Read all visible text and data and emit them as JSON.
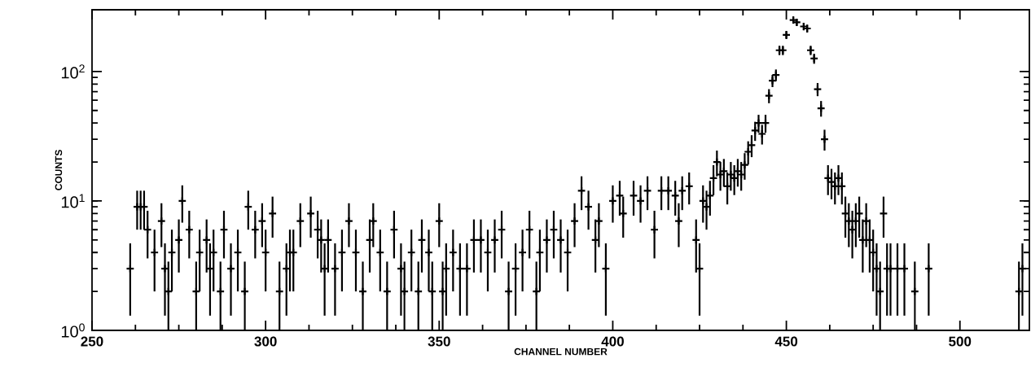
{
  "chart_data": {
    "type": "scatter",
    "xlabel": "CHANNEL NUMBER",
    "ylabel": "COUNTS",
    "log": "y",
    "marker": "cross",
    "xlim": [
      250,
      520
    ],
    "ylim": [
      1,
      300
    ],
    "xticks": [
      250,
      300,
      350,
      400,
      450,
      500
    ],
    "yticks": [
      {
        "value": 1,
        "label": "10$^{0}$"
      },
      {
        "value": 10,
        "label": "10$^{1}$"
      },
      {
        "value": 100,
        "label": "10$^{2}$"
      }
    ],
    "series": [
      {
        "color": "#000000",
        "x": [
          261,
          263,
          264,
          265,
          266,
          268,
          270,
          271,
          272,
          273,
          275,
          276,
          278,
          280,
          281,
          283,
          284,
          285,
          287,
          288,
          290,
          292,
          294,
          295,
          297,
          299,
          300,
          302,
          304,
          306,
          307,
          308,
          310,
          313,
          315,
          316,
          317,
          318,
          320,
          322,
          324,
          326,
          328,
          330,
          331,
          333,
          335,
          337,
          339,
          340,
          342,
          344,
          345,
          347,
          348,
          350,
          351,
          352,
          354,
          356,
          358,
          360,
          362,
          364,
          366,
          368,
          370,
          372,
          374,
          376,
          378,
          379,
          381,
          383,
          385,
          387,
          389,
          391,
          393,
          395,
          396,
          398,
          400,
          402,
          403,
          406,
          408,
          410,
          412,
          414,
          416,
          418,
          419,
          420,
          422,
          424,
          425,
          426,
          427,
          428,
          429,
          430,
          431,
          432,
          433,
          434,
          435,
          436,
          437,
          438,
          439,
          440,
          441,
          442,
          443,
          444,
          445,
          446,
          447,
          448,
          449,
          450,
          452,
          453,
          455,
          456,
          457,
          458,
          459,
          460,
          461,
          462,
          463,
          464,
          465,
          466,
          467,
          468,
          469,
          470,
          471,
          472,
          473,
          474,
          475,
          476,
          477,
          478,
          479,
          480,
          482,
          484,
          487,
          491,
          517,
          518
        ],
        "values": [
          3,
          9,
          9,
          9,
          6,
          4,
          7,
          3,
          2,
          4,
          5,
          10,
          6,
          2,
          4,
          5,
          3,
          4,
          2,
          6,
          3,
          4,
          2,
          9,
          6,
          7,
          4,
          8,
          2,
          3,
          4,
          4,
          7,
          8,
          6,
          5,
          3,
          5,
          3,
          4,
          7,
          4,
          2,
          5,
          7,
          4,
          2,
          6,
          3,
          2,
          4,
          2,
          5,
          4,
          2,
          7,
          2,
          3,
          4,
          3,
          3,
          5,
          5,
          4,
          5,
          6,
          2,
          3,
          4,
          6,
          2,
          4,
          5,
          6,
          5,
          4,
          7,
          12,
          9,
          5,
          7,
          3,
          10,
          11,
          8,
          11,
          10,
          12,
          6,
          12,
          12,
          11,
          7,
          12,
          13,
          5,
          3,
          10,
          9,
          11,
          15,
          20,
          16,
          17,
          13,
          16,
          15,
          17,
          16,
          19,
          24,
          27,
          35,
          40,
          33,
          40,
          65,
          85,
          94,
          146,
          146,
          192,
          250,
          240,
          223,
          215,
          146,
          126,
          73,
          52,
          30,
          15,
          14,
          13,
          15,
          13,
          8,
          7,
          6,
          7,
          8,
          5,
          7,
          5,
          4,
          3,
          2,
          8,
          3,
          3,
          3,
          3,
          2,
          3,
          2,
          3
        ],
        "errors": [
          1.7,
          3,
          3,
          3,
          2.4,
          2,
          2.6,
          1.7,
          [
            1,
            3.4
          ],
          2,
          2.2,
          3.2,
          2.4,
          [
            1,
            3.4
          ],
          2,
          2.2,
          1.7,
          2,
          [
            1,
            3.4
          ],
          2.4,
          1.7,
          2,
          [
            1,
            3.4
          ],
          3,
          2.4,
          2.6,
          2,
          2.8,
          [
            1,
            3.4
          ],
          1.7,
          2,
          2,
          2.6,
          2.8,
          2.4,
          2.2,
          1.7,
          2.2,
          1.7,
          2,
          2.6,
          2,
          [
            1,
            3.4
          ],
          2.2,
          2.6,
          2,
          [
            1,
            3.4
          ],
          2.4,
          1.7,
          [
            1,
            3.4
          ],
          2,
          [
            1,
            3.4
          ],
          2.2,
          2,
          [
            1,
            3.4
          ],
          2.6,
          [
            1,
            3.4
          ],
          1.7,
          2,
          1.7,
          1.7,
          2.2,
          2.2,
          2,
          2.2,
          2.4,
          [
            1,
            3.4
          ],
          1.7,
          2,
          2.4,
          [
            1,
            3.4
          ],
          2,
          2.2,
          2.4,
          2.2,
          2,
          2.6,
          3.5,
          3,
          2.2,
          2.6,
          1.7,
          3.2,
          3.3,
          2.8,
          3.3,
          3.2,
          3.5,
          2.4,
          3.5,
          3.5,
          3.3,
          2.6,
          3.5,
          3.6,
          2.2,
          1.7,
          3.2,
          3,
          3.3,
          3.9,
          4.5,
          4,
          4.1,
          3.6,
          4,
          3.9,
          4.1,
          4,
          4.4,
          4.9,
          5.2,
          5.9,
          6.3,
          5.7,
          6.3,
          8.1,
          9.2,
          9.7,
          12.1,
          12.1,
          13.9,
          15.8,
          15.5,
          14.9,
          14.7,
          12.1,
          11.2,
          8.5,
          7.2,
          5.5,
          3.9,
          3.7,
          3.6,
          3.9,
          3.6,
          2.8,
          2.6,
          2.4,
          2.6,
          2.8,
          2.2,
          2.6,
          2.2,
          2,
          1.7,
          [
            1,
            3.4
          ],
          2.8,
          1.7,
          1.7,
          1.7,
          1.7,
          [
            1,
            3.4
          ],
          1.7,
          [
            1,
            3.4
          ],
          1.7
        ]
      }
    ]
  }
}
